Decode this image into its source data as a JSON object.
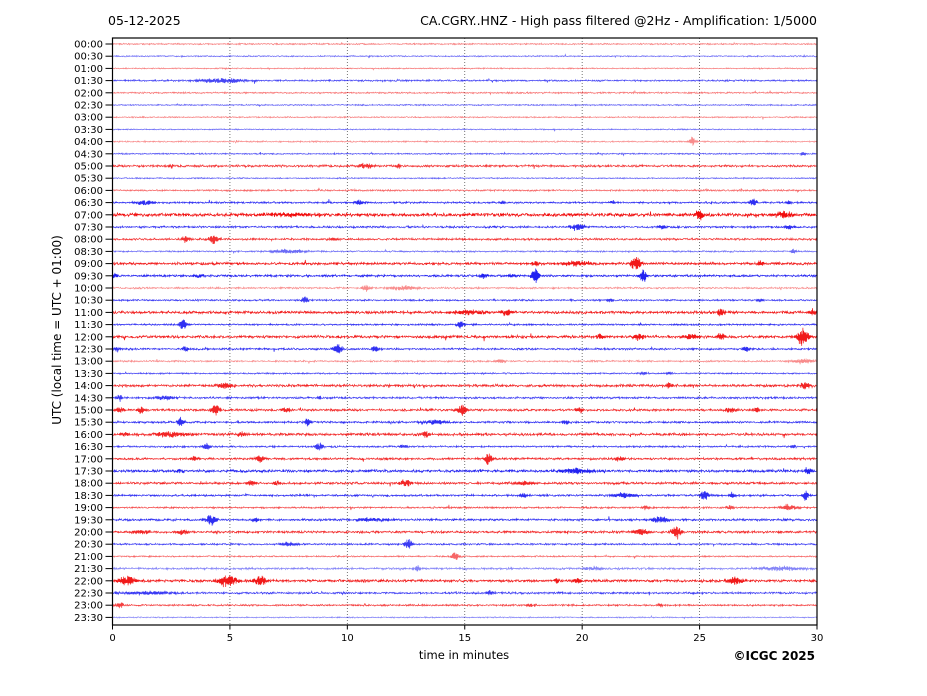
{
  "header": {
    "date": "05-12-2025",
    "title": "CA.CGRY..HNZ - High pass filtered @2Hz - Amplification: 1/5000"
  },
  "axes": {
    "y_label": "UTC (local time = UTC + 01:00)",
    "x_label": "time in minutes"
  },
  "footer": {
    "copyright": "©ICGC 2025"
  },
  "colors": {
    "red": "#f00000",
    "blue": "#0a0af0",
    "grid": "#555555",
    "frame": "#000000"
  },
  "chart_data": {
    "type": "line",
    "subtype": "helicorder-seismogram",
    "title": "CA.CGRY..HNZ - High pass filtered @2Hz - Amplification: 1/5000",
    "date": "05-12-2025",
    "station": "CA.CGRY..HNZ",
    "filter": "High pass filtered @2Hz",
    "amplification": "1/5000",
    "xlabel": "time in minutes",
    "ylabel": "UTC (local time = UTC + 01:00)",
    "xlim": [
      0,
      30
    ],
    "x_ticks": [
      0,
      5,
      10,
      15,
      20,
      25,
      30
    ],
    "grid": "vertical dotted every 5 minutes",
    "events_format": "[minute, amplitude_px, width_minutes]",
    "rows": [
      {
        "label": "00:00",
        "color": "red",
        "opacity": 0.5,
        "noise": 0.5,
        "events": []
      },
      {
        "label": "00:30",
        "color": "blue",
        "opacity": 0.6,
        "noise": 0.45,
        "events": []
      },
      {
        "label": "01:00",
        "color": "red",
        "opacity": 0.5,
        "noise": 0.4,
        "events": []
      },
      {
        "label": "01:30",
        "color": "blue",
        "opacity": 0.75,
        "noise": 0.6,
        "events": [
          [
            4.7,
            2.5,
            2.2
          ]
        ]
      },
      {
        "label": "02:00",
        "color": "red",
        "opacity": 0.55,
        "noise": 0.55,
        "events": []
      },
      {
        "label": "02:30",
        "color": "blue",
        "opacity": 0.65,
        "noise": 0.45,
        "events": []
      },
      {
        "label": "03:00",
        "color": "red",
        "opacity": 0.5,
        "noise": 0.45,
        "events": []
      },
      {
        "label": "03:30",
        "color": "blue",
        "opacity": 0.6,
        "noise": 0.4,
        "events": []
      },
      {
        "label": "04:00",
        "color": "red",
        "opacity": 0.45,
        "noise": 0.5,
        "events": [
          [
            24.7,
            5,
            0.25
          ]
        ]
      },
      {
        "label": "04:30",
        "color": "blue",
        "opacity": 0.7,
        "noise": 0.45,
        "events": [
          [
            29.4,
            2.5,
            0.2
          ]
        ]
      },
      {
        "label": "05:00",
        "color": "red",
        "opacity": 0.8,
        "noise": 0.8,
        "events": [
          [
            2.5,
            1.8,
            0.3
          ],
          [
            10.8,
            2.8,
            0.7
          ],
          [
            12.2,
            2.5,
            0.25
          ]
        ]
      },
      {
        "label": "05:30",
        "color": "blue",
        "opacity": 0.65,
        "noise": 0.45,
        "events": []
      },
      {
        "label": "06:00",
        "color": "red",
        "opacity": 0.6,
        "noise": 0.6,
        "events": []
      },
      {
        "label": "06:30",
        "color": "blue",
        "opacity": 0.85,
        "noise": 0.65,
        "events": [
          [
            1.4,
            2.5,
            0.9
          ],
          [
            10.5,
            2.8,
            0.4
          ],
          [
            16.6,
            1.8,
            0.3
          ],
          [
            21.3,
            1.8,
            0.3
          ],
          [
            27.3,
            4.5,
            0.35
          ],
          [
            28.8,
            1.8,
            0.3
          ]
        ]
      },
      {
        "label": "07:00",
        "color": "red",
        "opacity": 0.95,
        "noise": 1.2,
        "events": [
          [
            7.5,
            1.8,
            2.5
          ],
          [
            25.0,
            5.5,
            0.4
          ],
          [
            28.6,
            3.5,
            0.8
          ]
        ]
      },
      {
        "label": "07:30",
        "color": "blue",
        "opacity": 0.85,
        "noise": 0.7,
        "events": [
          [
            19.8,
            3.5,
            0.7
          ],
          [
            23.4,
            2.8,
            0.4
          ],
          [
            28.8,
            2.5,
            0.5
          ]
        ]
      },
      {
        "label": "08:00",
        "color": "red",
        "opacity": 0.8,
        "noise": 0.7,
        "events": [
          [
            3.1,
            3.5,
            0.4
          ],
          [
            4.3,
            4.5,
            0.5
          ],
          [
            9.4,
            1.8,
            0.4
          ]
        ]
      },
      {
        "label": "08:30",
        "color": "blue",
        "opacity": 0.6,
        "noise": 0.55,
        "events": [
          [
            7.5,
            2.2,
            1.6
          ],
          [
            29.0,
            2.8,
            0.25
          ]
        ]
      },
      {
        "label": "09:00",
        "color": "red",
        "opacity": 0.9,
        "noise": 0.9,
        "events": [
          [
            18.0,
            2.8,
            0.4
          ],
          [
            19.8,
            2.2,
            1.8
          ],
          [
            22.3,
            7.5,
            0.5
          ],
          [
            27.6,
            2.8,
            0.35
          ]
        ]
      },
      {
        "label": "09:30",
        "color": "blue",
        "opacity": 0.9,
        "noise": 0.75,
        "events": [
          [
            0.1,
            2.8,
            0.3
          ],
          [
            3.7,
            1.8,
            0.5
          ],
          [
            15.8,
            2.8,
            0.5
          ],
          [
            17.0,
            2.2,
            0.4
          ],
          [
            18.0,
            8,
            0.35
          ],
          [
            22.6,
            7,
            0.35
          ]
        ]
      },
      {
        "label": "10:00",
        "color": "red",
        "opacity": 0.45,
        "noise": 0.6,
        "events": [
          [
            10.8,
            3.5,
            0.4
          ],
          [
            12.4,
            2.5,
            1.3
          ]
        ]
      },
      {
        "label": "10:30",
        "color": "blue",
        "opacity": 0.8,
        "noise": 0.6,
        "events": [
          [
            8.2,
            3.5,
            0.35
          ],
          [
            21.2,
            1.8,
            0.3
          ],
          [
            27.6,
            1.8,
            0.3
          ]
        ]
      },
      {
        "label": "11:00",
        "color": "red",
        "opacity": 0.9,
        "noise": 0.95,
        "events": [
          [
            15.2,
            2.5,
            1.6
          ],
          [
            16.8,
            3.5,
            0.5
          ],
          [
            25.9,
            3.5,
            0.5
          ],
          [
            29.8,
            2.8,
            0.5
          ]
        ]
      },
      {
        "label": "11:30",
        "color": "blue",
        "opacity": 0.85,
        "noise": 0.6,
        "events": [
          [
            3.0,
            5.5,
            0.35
          ],
          [
            14.8,
            3.5,
            0.35
          ]
        ]
      },
      {
        "label": "12:00",
        "color": "red",
        "opacity": 0.9,
        "noise": 0.95,
        "events": [
          [
            20.8,
            2.8,
            0.4
          ],
          [
            22.4,
            3.5,
            0.5
          ],
          [
            24.6,
            2.8,
            0.8
          ],
          [
            25.9,
            3.5,
            0.4
          ],
          [
            29.4,
            10,
            0.5
          ]
        ]
      },
      {
        "label": "12:30",
        "color": "blue",
        "opacity": 0.85,
        "noise": 0.65,
        "events": [
          [
            0.2,
            2.8,
            0.3
          ],
          [
            3.1,
            2.8,
            0.3
          ],
          [
            9.6,
            5.5,
            0.4
          ],
          [
            11.2,
            3.5,
            0.35
          ],
          [
            27.0,
            3.5,
            0.35
          ]
        ]
      },
      {
        "label": "13:00",
        "color": "red",
        "opacity": 0.45,
        "noise": 0.6,
        "events": [
          [
            16.5,
            1.8,
            0.5
          ],
          [
            29.4,
            2.8,
            0.9
          ]
        ]
      },
      {
        "label": "13:30",
        "color": "blue",
        "opacity": 0.75,
        "noise": 0.5,
        "events": [
          [
            22.6,
            1.5,
            0.4
          ],
          [
            23.7,
            1.5,
            0.3
          ]
        ]
      },
      {
        "label": "14:00",
        "color": "red",
        "opacity": 0.85,
        "noise": 0.9,
        "events": [
          [
            4.8,
            2.8,
            0.9
          ],
          [
            23.7,
            2.8,
            0.4
          ],
          [
            29.5,
            3.5,
            0.5
          ]
        ]
      },
      {
        "label": "14:30",
        "color": "blue",
        "opacity": 0.8,
        "noise": 0.7,
        "events": [
          [
            0.3,
            3.5,
            0.3
          ],
          [
            2.2,
            2.2,
            1.1
          ],
          [
            8.8,
            1.8,
            0.3
          ]
        ]
      },
      {
        "label": "15:00",
        "color": "red",
        "opacity": 0.85,
        "noise": 0.8,
        "events": [
          [
            0.3,
            2.8,
            0.4
          ],
          [
            1.2,
            3.5,
            0.4
          ],
          [
            4.4,
            5.5,
            0.4
          ],
          [
            7.4,
            2.8,
            0.4
          ],
          [
            14.9,
            5.5,
            0.45
          ],
          [
            19.9,
            2.8,
            0.35
          ],
          [
            26.3,
            2.5,
            0.6
          ],
          [
            27.4,
            2.5,
            0.4
          ]
        ]
      },
      {
        "label": "15:30",
        "color": "blue",
        "opacity": 0.85,
        "noise": 0.7,
        "events": [
          [
            2.9,
            4.5,
            0.35
          ],
          [
            8.3,
            3.5,
            0.35
          ],
          [
            13.8,
            2.2,
            1.3
          ],
          [
            19.3,
            2.8,
            0.35
          ]
        ]
      },
      {
        "label": "16:00",
        "color": "red",
        "opacity": 0.85,
        "noise": 0.95,
        "events": [
          [
            0.5,
            2.2,
            0.5
          ],
          [
            2.5,
            2.8,
            1.7
          ],
          [
            5.5,
            2.2,
            0.4
          ],
          [
            13.3,
            2.8,
            0.4
          ]
        ]
      },
      {
        "label": "16:30",
        "color": "blue",
        "opacity": 0.8,
        "noise": 0.6,
        "events": [
          [
            4.0,
            3.5,
            0.35
          ],
          [
            8.8,
            4.5,
            0.35
          ],
          [
            12.4,
            2.2,
            0.4
          ],
          [
            29.0,
            1.8,
            0.3
          ]
        ]
      },
      {
        "label": "17:00",
        "color": "red",
        "opacity": 0.85,
        "noise": 0.75,
        "events": [
          [
            3.5,
            2.8,
            0.4
          ],
          [
            6.3,
            3.5,
            0.5
          ],
          [
            16.0,
            6.5,
            0.35
          ],
          [
            21.6,
            2.8,
            0.4
          ]
        ]
      },
      {
        "label": "17:30",
        "color": "blue",
        "opacity": 0.9,
        "noise": 0.9,
        "events": [
          [
            2.9,
            2.8,
            0.3
          ],
          [
            19.8,
            2.8,
            1.7
          ],
          [
            29.6,
            3.5,
            0.4
          ]
        ]
      },
      {
        "label": "18:00",
        "color": "red",
        "opacity": 0.85,
        "noise": 0.8,
        "events": [
          [
            5.9,
            3.5,
            0.4
          ],
          [
            7.0,
            2.8,
            0.4
          ],
          [
            12.5,
            3.5,
            0.6
          ],
          [
            17.5,
            2.2,
            0.9
          ]
        ]
      },
      {
        "label": "18:30",
        "color": "blue",
        "opacity": 0.85,
        "noise": 0.7,
        "events": [
          [
            17.5,
            2.8,
            0.4
          ],
          [
            21.8,
            2.8,
            1.1
          ],
          [
            25.2,
            6.5,
            0.35
          ],
          [
            26.4,
            3.5,
            0.3
          ],
          [
            29.5,
            5.5,
            0.3
          ]
        ]
      },
      {
        "label": "19:00",
        "color": "red",
        "opacity": 0.7,
        "noise": 0.6,
        "events": [
          [
            22.7,
            2.8,
            0.3
          ],
          [
            26.3,
            2.8,
            0.3
          ],
          [
            28.8,
            3.5,
            0.8
          ]
        ]
      },
      {
        "label": "19:30",
        "color": "blue",
        "opacity": 0.85,
        "noise": 0.75,
        "events": [
          [
            4.2,
            6.5,
            0.5
          ],
          [
            6.1,
            2.8,
            0.3
          ],
          [
            11.0,
            1.8,
            1.7
          ],
          [
            23.3,
            3.5,
            0.8
          ]
        ]
      },
      {
        "label": "20:00",
        "color": "red",
        "opacity": 0.85,
        "noise": 0.8,
        "events": [
          [
            1.2,
            2.2,
            0.9
          ],
          [
            3.0,
            2.8,
            0.5
          ],
          [
            22.5,
            3.5,
            0.7
          ],
          [
            24.0,
            6.5,
            0.5
          ]
        ]
      },
      {
        "label": "20:30",
        "color": "blue",
        "opacity": 0.8,
        "noise": 0.6,
        "events": [
          [
            7.5,
            2.2,
            0.9
          ],
          [
            12.6,
            5.5,
            0.35
          ]
        ]
      },
      {
        "label": "21:00",
        "color": "red",
        "opacity": 0.6,
        "noise": 0.5,
        "events": [
          [
            14.6,
            5,
            0.35
          ]
        ]
      },
      {
        "label": "21:30",
        "color": "blue",
        "opacity": 0.5,
        "noise": 0.7,
        "events": [
          [
            13.0,
            2.8,
            0.4
          ],
          [
            20.5,
            1.8,
            0.9
          ],
          [
            28.5,
            2.2,
            2.2
          ]
        ]
      },
      {
        "label": "22:00",
        "color": "red",
        "opacity": 0.9,
        "noise": 0.9,
        "events": [
          [
            0.6,
            4.5,
            0.9
          ],
          [
            4.9,
            6.5,
            0.9
          ],
          [
            6.3,
            5.5,
            0.6
          ],
          [
            18.9,
            2.8,
            0.3
          ],
          [
            19.8,
            2.8,
            0.4
          ],
          [
            26.5,
            3.5,
            0.9
          ]
        ]
      },
      {
        "label": "22:30",
        "color": "blue",
        "opacity": 0.8,
        "noise": 0.7,
        "events": [
          [
            1.5,
            1.8,
            2.2
          ],
          [
            16.1,
            3.5,
            0.35
          ]
        ]
      },
      {
        "label": "23:00",
        "color": "red",
        "opacity": 0.75,
        "noise": 0.6,
        "events": [
          [
            0.3,
            3.5,
            0.4
          ],
          [
            17.8,
            1.8,
            0.5
          ],
          [
            23.3,
            1.8,
            0.3
          ]
        ]
      },
      {
        "label": "23:30",
        "color": "blue",
        "opacity": 0.5,
        "noise": 0.4,
        "events": []
      }
    ]
  }
}
